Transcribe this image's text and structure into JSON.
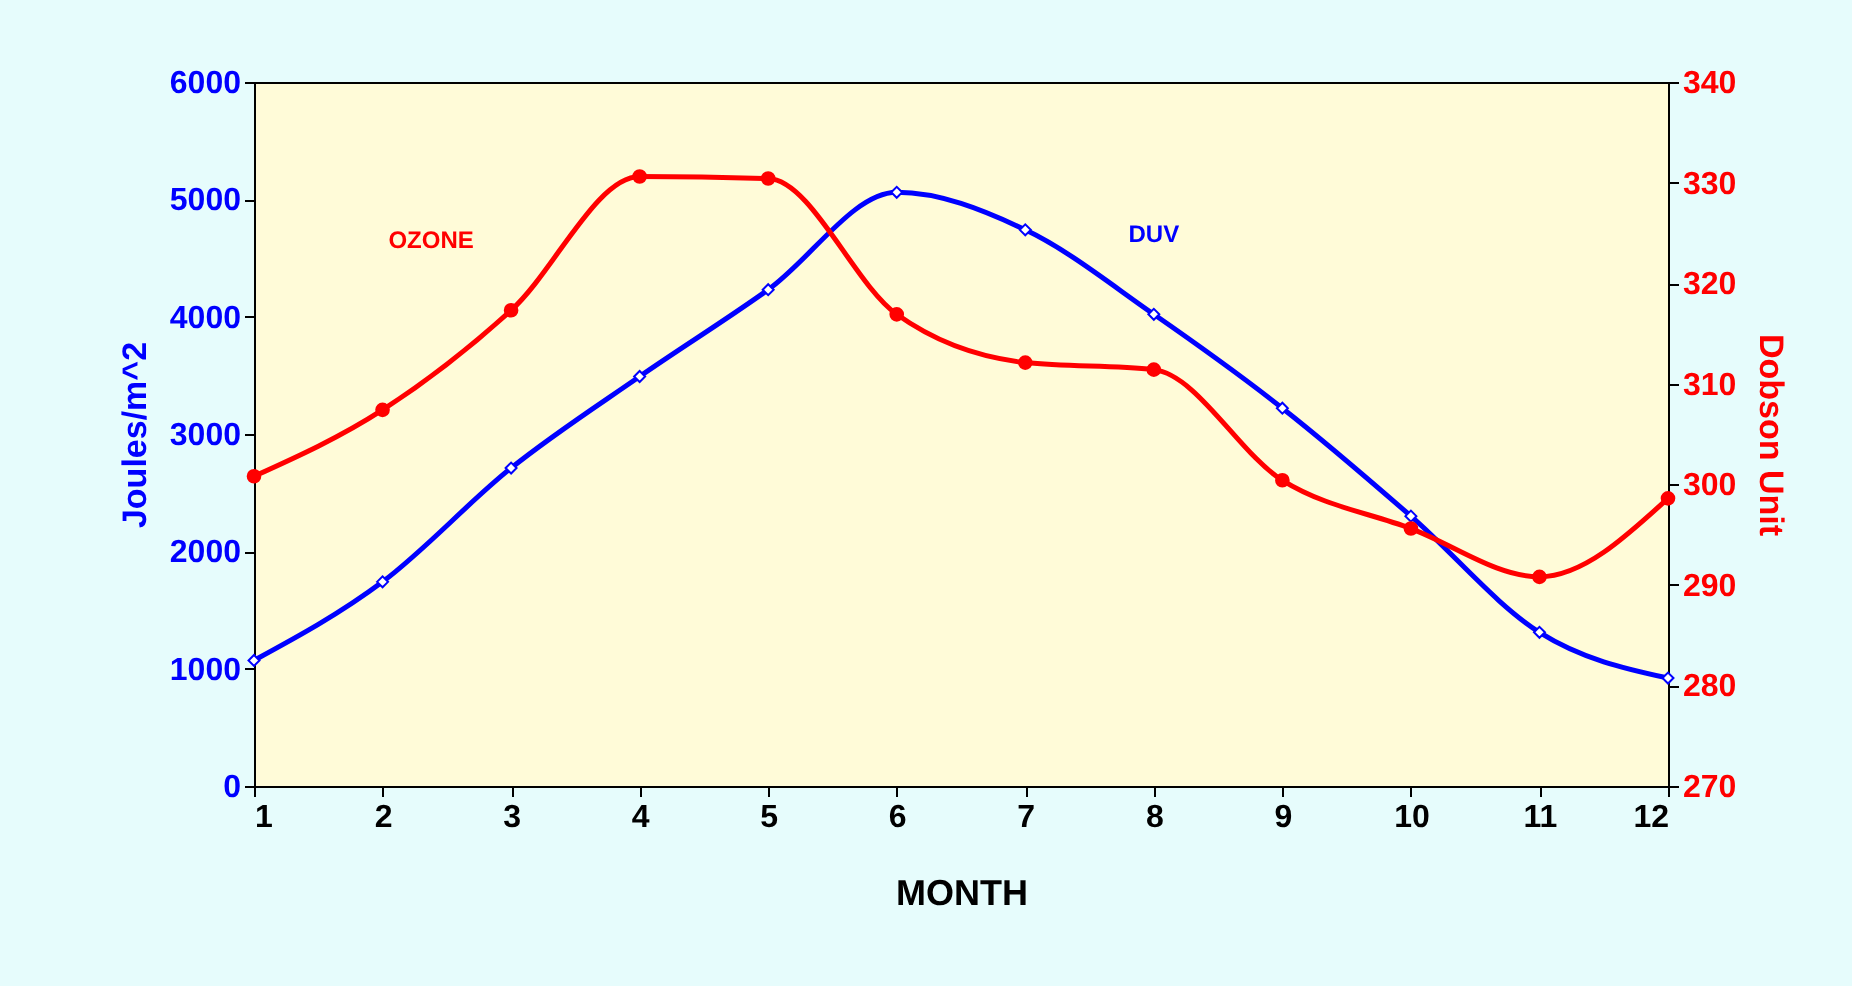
{
  "chart_data": {
    "type": "line",
    "xlabel": "MONTH",
    "ylabel": "Joules/m^2",
    "y2label": "Dobson Unit",
    "x": [
      1,
      2,
      3,
      4,
      5,
      6,
      7,
      8,
      9,
      10,
      11,
      12
    ],
    "xlim": [
      1,
      12
    ],
    "xticks": [
      1,
      2,
      3,
      4,
      5,
      6,
      7,
      8,
      9,
      10,
      11,
      12
    ],
    "ylim": [
      0,
      6000
    ],
    "yticks": [
      0,
      1000,
      2000,
      3000,
      4000,
      5000,
      6000
    ],
    "y2lim": [
      270,
      340
    ],
    "y2ticks": [
      270,
      280,
      290,
      300,
      310,
      320,
      330,
      340
    ],
    "grid": false,
    "legend": false,
    "line_style": "solid",
    "series": [
      {
        "name": "DUV",
        "color": "#0000ff",
        "marker": "diamond",
        "values": [
          1070,
          1740,
          2710,
          3490,
          4230,
          5060,
          4740,
          4020,
          3220,
          2300,
          1310,
          920
        ]
      },
      {
        "name": "OZONE",
        "color": "#ff0000",
        "marker": "circle",
        "axis": "y2",
        "values": [
          300.8,
          307.4,
          317.3,
          330.6,
          330.4,
          316.9,
          312.1,
          311.4,
          300.4,
          295.6,
          290.8,
          298.6
        ]
      }
    ]
  }
}
